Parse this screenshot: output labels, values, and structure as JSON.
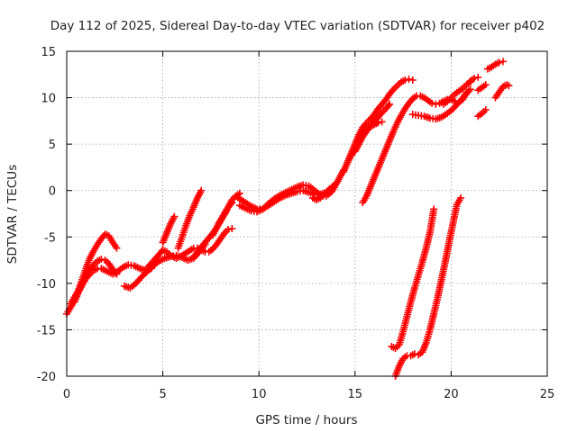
{
  "chart_data": {
    "type": "scatter",
    "title": "Day 112 of 2025, Sidereal Day-to-day VTEC variation (SDTVAR) for receiver p402",
    "xlabel": "GPS time / hours",
    "ylabel": "SDTVAR / TECUs",
    "xlim": [
      0,
      25
    ],
    "ylim": [
      -20,
      15
    ],
    "xticks": [
      "0",
      "5",
      "10",
      "15",
      "20",
      "25"
    ],
    "yticks": [
      "-20",
      "-15",
      "-10",
      "-5",
      "0",
      "5",
      "10",
      "15"
    ],
    "grid": true,
    "marker": "+",
    "color": "#ff0000",
    "series": [
      {
        "x": [
          0.0,
          0.2,
          0.4,
          0.6,
          0.8,
          1.0,
          1.2,
          1.4,
          1.6,
          1.8,
          2.0,
          2.2,
          2.4,
          2.6
        ],
        "y": [
          -13.3,
          -12.6,
          -11.8,
          -10.8,
          -9.6,
          -8.4,
          -7.3,
          -6.5,
          -5.8,
          -5.2,
          -4.7,
          -4.9,
          -5.6,
          -6.2
        ]
      },
      {
        "x": [
          0.2,
          0.4,
          0.6,
          0.8,
          1.0,
          1.2,
          1.4,
          1.6,
          1.8,
          2.0,
          2.2,
          2.4,
          2.6
        ],
        "y": [
          -12.2,
          -11.5,
          -10.8,
          -10.0,
          -9.2,
          -8.5,
          -8.0,
          -7.6,
          -7.4,
          -7.5,
          -7.9,
          -8.5,
          -9.0
        ]
      },
      {
        "x": [
          0.4,
          0.6,
          0.8,
          1.0,
          1.2,
          1.4,
          1.6,
          1.8,
          2.0,
          2.2,
          2.4,
          2.6
        ],
        "y": [
          -12.0,
          -11.0,
          -10.2,
          -9.5,
          -9.0,
          -8.6,
          -8.4,
          -8.4,
          -8.6,
          -8.8,
          -9.0,
          -8.8
        ]
      },
      {
        "x": [
          2.6,
          2.9,
          3.2,
          3.5,
          3.8,
          4.1,
          4.4
        ],
        "y": [
          -8.8,
          -8.3,
          -8.0,
          -8.1,
          -8.4,
          -8.6,
          -8.4
        ]
      },
      {
        "x": [
          3.0,
          3.3,
          3.6,
          3.9,
          4.2,
          4.5,
          4.8,
          5.1,
          5.4,
          5.7,
          6.0,
          6.3,
          6.6,
          6.9,
          7.2
        ],
        "y": [
          -10.3,
          -10.5,
          -10.0,
          -9.3,
          -8.7,
          -8.1,
          -7.6,
          -7.3,
          -7.1,
          -7.0,
          -7.2,
          -7.5,
          -7.3,
          -6.6,
          -5.8
        ]
      },
      {
        "x": [
          4.2,
          4.5,
          4.8,
          5.0,
          5.2,
          5.4,
          5.7,
          6.0,
          6.3,
          6.6
        ],
        "y": [
          -8.3,
          -7.6,
          -6.9,
          -6.4,
          -6.6,
          -7.0,
          -7.3,
          -7.0,
          -6.6,
          -6.2
        ]
      },
      {
        "x": [
          5.0,
          5.2,
          5.4,
          5.6
        ],
        "y": [
          -5.6,
          -4.6,
          -3.6,
          -2.8
        ]
      },
      {
        "x": [
          5.8,
          6.0,
          6.2,
          6.4,
          6.6,
          6.8,
          7.0
        ],
        "y": [
          -6.2,
          -5.0,
          -3.8,
          -2.7,
          -1.8,
          -0.8,
          0.0
        ]
      },
      {
        "x": [
          6.6,
          6.8,
          7.0,
          7.2,
          7.4,
          7.6,
          7.8,
          8.0,
          8.2,
          8.4,
          8.6,
          8.8,
          9.0
        ],
        "y": [
          -7.2,
          -6.6,
          -6.1,
          -5.6,
          -5.1,
          -4.6,
          -4.0,
          -3.3,
          -2.6,
          -1.8,
          -1.0,
          -0.6,
          -0.3
        ]
      },
      {
        "x": [
          6.8,
          7.0,
          7.2,
          7.4,
          7.6,
          7.8,
          8.0,
          8.2,
          8.4,
          8.6
        ],
        "y": [
          -6.2,
          -6.4,
          -6.6,
          -6.6,
          -6.3,
          -5.8,
          -5.2,
          -4.6,
          -4.2,
          -4.1
        ]
      },
      {
        "x": [
          7.6,
          7.8,
          8.0,
          8.2,
          8.4,
          8.6
        ],
        "y": [
          -4.8,
          -4.0,
          -3.2,
          -2.5,
          -1.8,
          -1.3
        ]
      },
      {
        "x": [
          8.8,
          9.0,
          9.3,
          9.6,
          9.9,
          10.2,
          10.5,
          10.8,
          11.1,
          11.4,
          11.7,
          12.0,
          12.3,
          12.6,
          12.9,
          13.2,
          13.5,
          13.8,
          14.1
        ],
        "y": [
          -0.6,
          -0.9,
          -1.3,
          -1.7,
          -2.0,
          -2.0,
          -1.6,
          -1.2,
          -0.8,
          -0.5,
          -0.3,
          -0.1,
          0.0,
          -0.2,
          -0.4,
          -0.4,
          -0.2,
          0.3,
          1.0
        ]
      },
      {
        "x": [
          9.0,
          9.3,
          9.6,
          9.9,
          10.2,
          10.5,
          10.8,
          11.1,
          11.4,
          11.7,
          12.0,
          12.3,
          12.6,
          12.9,
          13.2,
          13.5,
          13.8,
          14.1,
          14.4
        ],
        "y": [
          -1.6,
          -1.9,
          -2.2,
          -2.3,
          -2.0,
          -1.4,
          -0.9,
          -0.5,
          -0.2,
          0.1,
          0.4,
          0.6,
          0.5,
          0.0,
          -0.5,
          -0.6,
          -0.1,
          1.0,
          2.2
        ]
      },
      {
        "x": [
          12.8,
          13.0,
          13.2,
          13.4,
          13.6,
          13.8
        ],
        "y": [
          -0.8,
          -1.0,
          -0.8,
          -0.4,
          0.0,
          0.4
        ]
      },
      {
        "x": [
          14.4,
          14.6,
          14.8,
          15.0,
          15.2,
          15.4,
          15.6,
          15.8,
          16.0,
          16.2,
          16.4,
          16.6,
          16.8,
          17.0,
          17.2,
          17.4,
          17.6,
          17.8,
          18.0
        ],
        "y": [
          2.0,
          3.0,
          4.0,
          5.0,
          6.0,
          6.8,
          7.3,
          7.7,
          8.2,
          8.8,
          9.3,
          9.8,
          10.4,
          10.9,
          11.3,
          11.7,
          11.9,
          12.0,
          11.9
        ]
      },
      {
        "x": [
          14.6,
          14.8,
          15.0,
          15.2,
          15.4,
          15.6,
          15.8,
          16.0,
          16.2,
          16.4
        ],
        "y": [
          3.0,
          3.8,
          4.6,
          5.4,
          6.0,
          6.5,
          6.9,
          7.1,
          7.3,
          7.4
        ]
      },
      {
        "x": [
          15.0,
          15.2,
          15.4,
          15.6,
          15.8,
          16.0,
          16.2,
          16.4,
          16.6,
          16.8
        ],
        "y": [
          4.2,
          5.0,
          5.8,
          6.4,
          6.9,
          7.4,
          7.9,
          8.4,
          8.8,
          9.3
        ]
      },
      {
        "x": [
          15.4,
          15.6,
          15.8,
          16.0,
          16.2,
          16.4,
          16.6,
          16.8,
          17.0,
          17.2,
          17.4,
          17.6,
          17.8,
          18.0,
          18.2,
          18.4,
          18.6,
          18.8,
          19.0,
          19.2,
          19.4,
          19.6,
          19.8,
          20.0,
          20.2,
          20.4,
          20.6,
          20.8
        ],
        "y": [
          -1.3,
          -0.6,
          0.4,
          1.4,
          2.4,
          3.4,
          4.4,
          5.4,
          6.4,
          7.3,
          8.1,
          8.8,
          9.4,
          9.9,
          10.2,
          10.2,
          10.0,
          9.7,
          9.4,
          9.3,
          9.4,
          9.6,
          9.8,
          9.8,
          9.6,
          9.5,
          9.8,
          10.6
        ]
      },
      {
        "x": [
          18.0,
          18.3,
          18.6,
          18.9,
          19.2,
          19.5,
          19.8,
          20.1,
          20.4,
          20.7,
          21.0
        ],
        "y": [
          8.2,
          8.1,
          8.0,
          7.8,
          7.7,
          7.9,
          8.3,
          8.8,
          9.5,
          10.2,
          10.9
        ]
      },
      {
        "x": [
          19.6,
          19.8,
          20.0,
          20.2,
          20.4,
          20.6,
          20.8,
          21.0
        ],
        "y": [
          9.3,
          9.6,
          10.0,
          10.4,
          10.7,
          11.0,
          11.4,
          11.7
        ]
      },
      {
        "x": [
          21.0,
          21.2,
          21.4
        ],
        "y": [
          11.8,
          12.1,
          12.2
        ]
      },
      {
        "x": [
          21.4,
          21.6,
          21.8
        ],
        "y": [
          10.8,
          11.1,
          11.4
        ]
      },
      {
        "x": [
          21.4,
          21.6,
          21.8
        ],
        "y": [
          8.0,
          8.3,
          8.7
        ]
      },
      {
        "x": [
          21.9,
          22.1,
          22.3,
          22.5,
          22.7
        ],
        "y": [
          13.1,
          13.3,
          13.6,
          13.8,
          13.9
        ]
      },
      {
        "x": [
          22.3,
          22.5,
          22.7,
          22.9,
          23.0
        ],
        "y": [
          10.0,
          10.6,
          11.2,
          11.4,
          11.3
        ]
      },
      {
        "x": [
          16.9,
          17.1,
          17.3,
          17.5,
          17.7,
          17.9,
          18.1,
          18.3,
          18.5,
          18.7,
          18.9,
          19.1
        ],
        "y": [
          -16.8,
          -17.0,
          -16.6,
          -15.2,
          -13.6,
          -12.0,
          -10.5,
          -9.1,
          -7.7,
          -6.2,
          -4.5,
          -2.0
        ]
      },
      {
        "x": [
          17.1,
          17.3,
          17.5,
          17.7,
          17.9,
          18.1,
          18.3,
          18.5,
          18.7,
          18.9,
          19.1,
          19.3,
          19.5,
          19.7,
          19.9,
          20.1,
          20.3,
          20.5
        ],
        "y": [
          -20.0,
          -18.9,
          -18.1,
          -17.8,
          -17.8,
          -17.6,
          -17.7,
          -17.4,
          -16.4,
          -15.0,
          -13.3,
          -11.5,
          -9.6,
          -7.6,
          -5.5,
          -3.5,
          -1.5,
          -0.8
        ]
      }
    ]
  }
}
